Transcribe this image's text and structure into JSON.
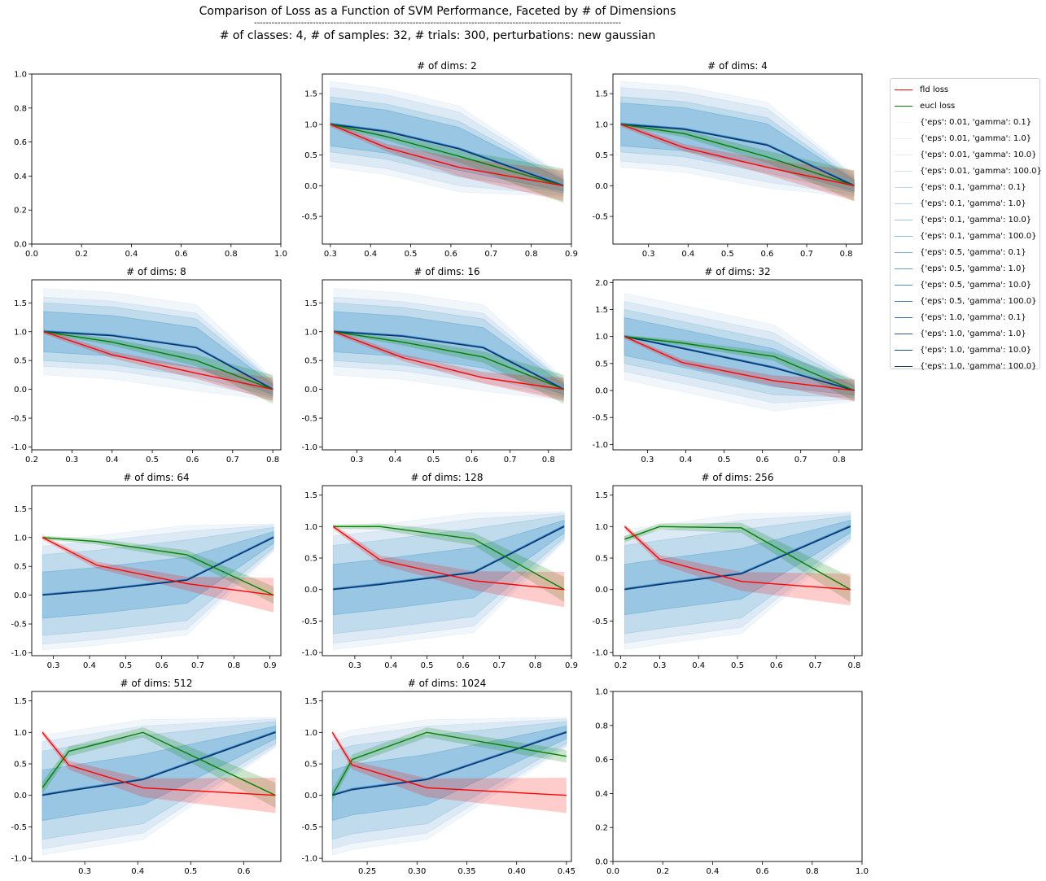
{
  "title": {
    "main": "Comparison of Loss as a Function of SVM Performance, Faceted by # of Dimensions",
    "divider": "-----------------------------------------------------------------------------------------------------------------------------",
    "sub": "# of classes: 4, # of samples: 32, # trials: 300, perturbations: new gaussian"
  },
  "legend": [
    {
      "label": "fld loss",
      "color": "#ff0000"
    },
    {
      "label": "eucl loss",
      "color": "#008000"
    },
    {
      "label": "{'eps': 0.01, 'gamma': 0.1}",
      "color": "#f4f8fc"
    },
    {
      "label": "{'eps': 0.01, 'gamma': 1.0}",
      "color": "#e9f1fa"
    },
    {
      "label": "{'eps': 0.01, 'gamma': 10.0}",
      "color": "#dde9f6"
    },
    {
      "label": "{'eps': 0.01, 'gamma': 100.0}",
      "color": "#d1e1f1"
    },
    {
      "label": "{'eps': 0.1, 'gamma': 0.1}",
      "color": "#c3d8ec"
    },
    {
      "label": "{'eps': 0.1, 'gamma': 1.0}",
      "color": "#b3cfe7"
    },
    {
      "label": "{'eps': 0.1, 'gamma': 10.0}",
      "color": "#a1c4e2"
    },
    {
      "label": "{'eps': 0.1, 'gamma': 100.0}",
      "color": "#8fb9dc"
    },
    {
      "label": "{'eps': 0.5, 'gamma': 0.1}",
      "color": "#7aabd4"
    },
    {
      "label": "{'eps': 0.5, 'gamma': 1.0}",
      "color": "#669cca"
    },
    {
      "label": "{'eps': 0.5, 'gamma': 10.0}",
      "color": "#538dc0"
    },
    {
      "label": "{'eps': 0.5, 'gamma': 100.0}",
      "color": "#427db4"
    },
    {
      "label": "{'eps': 1.0, 'gamma': 0.1}",
      "color": "#346ea7"
    },
    {
      "label": "{'eps': 1.0, 'gamma': 1.0}",
      "color": "#265d96"
    },
    {
      "label": "{'eps': 1.0, 'gamma': 10.0}",
      "color": "#1a4d84"
    },
    {
      "label": "{'eps': 1.0, 'gamma': 100.0}",
      "color": "#0e3d70"
    }
  ],
  "chart_data": [
    {
      "type": "line",
      "title": "",
      "empty": true,
      "xlim": [
        0,
        1
      ],
      "ylim": [
        0,
        1
      ],
      "xticks": [
        0.0,
        0.2,
        0.4,
        0.6,
        0.8,
        1.0
      ],
      "yticks": [
        0.0,
        0.2,
        0.4,
        0.6,
        0.8,
        1.0
      ],
      "tick_decimals": 1
    },
    {
      "type": "line",
      "title": "# of dims: 2",
      "xlim": [
        0.28,
        0.9
      ],
      "ylim": [
        -0.95,
        1.82
      ],
      "xticks": [
        0.3,
        0.4,
        0.5,
        0.6,
        0.7,
        0.8,
        0.9
      ],
      "yticks": [
        -0.5,
        0.0,
        0.5,
        1.0,
        1.5
      ],
      "tick_decimals": 1,
      "x": [
        0.3,
        0.44,
        0.62,
        0.88
      ],
      "fld": [
        1.0,
        0.62,
        0.3,
        0.0
      ],
      "fld_band": [
        0.04,
        0.06,
        0.15,
        0.25
      ],
      "eucl": [
        1.0,
        0.8,
        0.48,
        0.0
      ],
      "eucl_band": [
        0.03,
        0.06,
        0.1,
        0.28
      ],
      "svm": [
        1.0,
        0.88,
        0.6,
        0.0
      ],
      "svm_bands": [
        0.7,
        0.6,
        0.45,
        0.35
      ]
    },
    {
      "type": "line",
      "title": "# of dims: 4",
      "xlim": [
        0.21,
        0.84
      ],
      "ylim": [
        -0.95,
        1.82
      ],
      "xticks": [
        0.3,
        0.4,
        0.5,
        0.6,
        0.7,
        0.8
      ],
      "yticks": [
        -0.5,
        0.0,
        0.5,
        1.0,
        1.5
      ],
      "tick_decimals": 1,
      "x": [
        0.23,
        0.39,
        0.6,
        0.82
      ],
      "fld": [
        1.0,
        0.62,
        0.3,
        0.0
      ],
      "fld_band": [
        0.04,
        0.06,
        0.12,
        0.25
      ],
      "eucl": [
        1.0,
        0.85,
        0.47,
        0.0
      ],
      "eucl_band": [
        0.03,
        0.06,
        0.1,
        0.25
      ],
      "svm": [
        1.0,
        0.92,
        0.66,
        0.0
      ],
      "svm_bands": [
        0.7,
        0.6,
        0.45,
        0.35
      ]
    },
    {
      "type": "line",
      "title": "# of dims: 8",
      "xlim": [
        0.2,
        0.82
      ],
      "ylim": [
        -1.05,
        1.9
      ],
      "xticks": [
        0.2,
        0.3,
        0.4,
        0.5,
        0.6,
        0.7,
        0.8
      ],
      "yticks": [
        -1.0,
        -0.5,
        0.0,
        0.5,
        1.0,
        1.5
      ],
      "tick_decimals": 1,
      "x": [
        0.23,
        0.4,
        0.61,
        0.8
      ],
      "fld": [
        1.0,
        0.6,
        0.28,
        0.0
      ],
      "fld_band": [
        0.04,
        0.06,
        0.1,
        0.2
      ],
      "eucl": [
        1.0,
        0.82,
        0.5,
        0.0
      ],
      "eucl_band": [
        0.03,
        0.06,
        0.1,
        0.25
      ],
      "svm": [
        1.0,
        0.93,
        0.72,
        0.0
      ],
      "svm_bands": [
        0.75,
        0.6,
        0.5,
        0.35
      ]
    },
    {
      "type": "line",
      "title": "# of dims: 16",
      "xlim": [
        0.21,
        0.86
      ],
      "ylim": [
        -1.05,
        1.9
      ],
      "xticks": [
        0.3,
        0.4,
        0.5,
        0.6,
        0.7,
        0.8
      ],
      "yticks": [
        -1.0,
        -0.5,
        0.0,
        0.5,
        1.0,
        1.5
      ],
      "tick_decimals": 1,
      "x": [
        0.24,
        0.42,
        0.63,
        0.84
      ],
      "fld": [
        1.0,
        0.55,
        0.2,
        0.0
      ],
      "fld_band": [
        0.04,
        0.06,
        0.1,
        0.2
      ],
      "eucl": [
        1.0,
        0.82,
        0.56,
        0.0
      ],
      "eucl_band": [
        0.03,
        0.06,
        0.1,
        0.25
      ],
      "svm": [
        1.0,
        0.92,
        0.72,
        0.0
      ],
      "svm_bands": [
        0.75,
        0.6,
        0.5,
        0.35
      ]
    },
    {
      "type": "line",
      "title": "# of dims: 32",
      "xlim": [
        0.21,
        0.86
      ],
      "ylim": [
        -1.1,
        2.05
      ],
      "xticks": [
        0.3,
        0.4,
        0.5,
        0.6,
        0.7,
        0.8
      ],
      "yticks": [
        -1.0,
        -0.5,
        0.0,
        0.5,
        1.0,
        1.5,
        2.0
      ],
      "tick_decimals": 1,
      "x": [
        0.24,
        0.39,
        0.63,
        0.84
      ],
      "fld": [
        1.0,
        0.52,
        0.18,
        0.0
      ],
      "fld_band": [
        0.04,
        0.06,
        0.1,
        0.2
      ],
      "eucl": [
        1.0,
        0.88,
        0.63,
        0.0
      ],
      "eucl_band": [
        0.03,
        0.05,
        0.08,
        0.2
      ],
      "svm": [
        1.0,
        0.78,
        0.42,
        0.0
      ],
      "svm_bands": [
        0.8,
        0.65,
        0.5,
        0.35
      ]
    },
    {
      "type": "line",
      "title": "# of dims: 64",
      "xlim": [
        0.24,
        0.93
      ],
      "ylim": [
        -1.05,
        1.9
      ],
      "xticks": [
        0.3,
        0.4,
        0.5,
        0.6,
        0.7,
        0.8,
        0.9
      ],
      "yticks": [
        -1.0,
        -0.5,
        0.0,
        0.5,
        1.0,
        1.5
      ],
      "tick_decimals": 1,
      "x": [
        0.27,
        0.42,
        0.67,
        0.91
      ],
      "fld": [
        1.0,
        0.52,
        0.2,
        0.0
      ],
      "fld_band": [
        0.04,
        0.06,
        0.12,
        0.3
      ],
      "eucl": [
        1.0,
        0.93,
        0.7,
        0.0
      ],
      "eucl_band": [
        0.03,
        0.05,
        0.08,
        0.15
      ],
      "svm": [
        0.0,
        0.08,
        0.26,
        1.0
      ],
      "svm_bands": [
        0.95,
        0.85,
        0.7,
        0.4
      ]
    },
    {
      "type": "line",
      "title": "# of dims: 128",
      "xlim": [
        0.21,
        0.9
      ],
      "ylim": [
        -1.05,
        1.65
      ],
      "xticks": [
        0.3,
        0.4,
        0.5,
        0.6,
        0.7,
        0.8,
        0.9
      ],
      "yticks": [
        -1.0,
        -0.5,
        0.0,
        0.5,
        1.0,
        1.5
      ],
      "tick_decimals": 1,
      "x": [
        0.24,
        0.37,
        0.63,
        0.88
      ],
      "fld": [
        1.0,
        0.47,
        0.14,
        0.0
      ],
      "fld_band": [
        0.04,
        0.07,
        0.15,
        0.28
      ],
      "eucl": [
        1.0,
        1.0,
        0.8,
        0.0
      ],
      "eucl_band": [
        0.03,
        0.05,
        0.1,
        0.2
      ],
      "svm": [
        0.0,
        0.08,
        0.27,
        1.0
      ],
      "svm_bands": [
        0.95,
        0.85,
        0.7,
        0.4
      ]
    },
    {
      "type": "line",
      "title": "# of dims: 256",
      "xlim": [
        0.18,
        0.82
      ],
      "ylim": [
        -1.05,
        1.65
      ],
      "xticks": [
        0.2,
        0.3,
        0.4,
        0.5,
        0.6,
        0.7,
        0.8
      ],
      "yticks": [
        -1.0,
        -0.5,
        0.0,
        0.5,
        1.0,
        1.5
      ],
      "tick_decimals": 1,
      "x": [
        0.21,
        0.3,
        0.51,
        0.79
      ],
      "fld": [
        1.0,
        0.48,
        0.13,
        0.0
      ],
      "fld_band": [
        0.04,
        0.07,
        0.15,
        0.25
      ],
      "eucl": [
        0.8,
        1.0,
        0.98,
        0.0
      ],
      "eucl_band": [
        0.05,
        0.05,
        0.08,
        0.2
      ],
      "svm": [
        0.0,
        0.08,
        0.25,
        1.0
      ],
      "svm_bands": [
        0.95,
        0.85,
        0.7,
        0.4
      ]
    },
    {
      "type": "line",
      "title": "# of dims: 512",
      "xlim": [
        0.2,
        0.67
      ],
      "ylim": [
        -1.05,
        1.65
      ],
      "xticks": [
        0.3,
        0.4,
        0.5,
        0.6
      ],
      "yticks": [
        -1.0,
        -0.5,
        0.0,
        0.5,
        1.0,
        1.5
      ],
      "tick_decimals": 1,
      "x": [
        0.22,
        0.27,
        0.41,
        0.66
      ],
      "fld": [
        1.0,
        0.48,
        0.12,
        0.0
      ],
      "fld_band": [
        0.04,
        0.07,
        0.15,
        0.28
      ],
      "eucl": [
        0.12,
        0.7,
        1.0,
        0.0
      ],
      "eucl_band": [
        0.1,
        0.08,
        0.08,
        0.2
      ],
      "svm": [
        0.0,
        0.07,
        0.25,
        1.0
      ],
      "svm_bands": [
        0.95,
        0.85,
        0.7,
        0.4
      ]
    },
    {
      "type": "line",
      "title": "# of dims: 1024",
      "xlim": [
        0.205,
        0.455
      ],
      "ylim": [
        -1.05,
        1.65
      ],
      "xticks": [
        0.25,
        0.3,
        0.35,
        0.4,
        0.45
      ],
      "yticks": [
        -1.0,
        -0.5,
        0.0,
        0.5,
        1.0,
        1.5
      ],
      "tick_decimals": 2,
      "ytick_decimals": 1,
      "x": [
        0.215,
        0.235,
        0.31,
        0.45
      ],
      "fld": [
        1.0,
        0.48,
        0.12,
        0.0
      ],
      "fld_band": [
        0.04,
        0.07,
        0.15,
        0.28
      ],
      "eucl": [
        0.0,
        0.57,
        1.0,
        0.62
      ],
      "eucl_band": [
        0.1,
        0.08,
        0.08,
        0.1
      ],
      "svm": [
        0.0,
        0.09,
        0.25,
        1.0
      ],
      "svm_bands": [
        0.95,
        0.85,
        0.7,
        0.4
      ]
    },
    {
      "type": "line",
      "title": "",
      "empty": true,
      "xlim": [
        0,
        1
      ],
      "ylim": [
        0,
        1
      ],
      "xticks": [
        0.0,
        0.2,
        0.4,
        0.6,
        0.8,
        1.0
      ],
      "yticks": [
        0.0,
        0.2,
        0.4,
        0.6,
        0.8,
        1.0
      ],
      "tick_decimals": 1
    }
  ]
}
